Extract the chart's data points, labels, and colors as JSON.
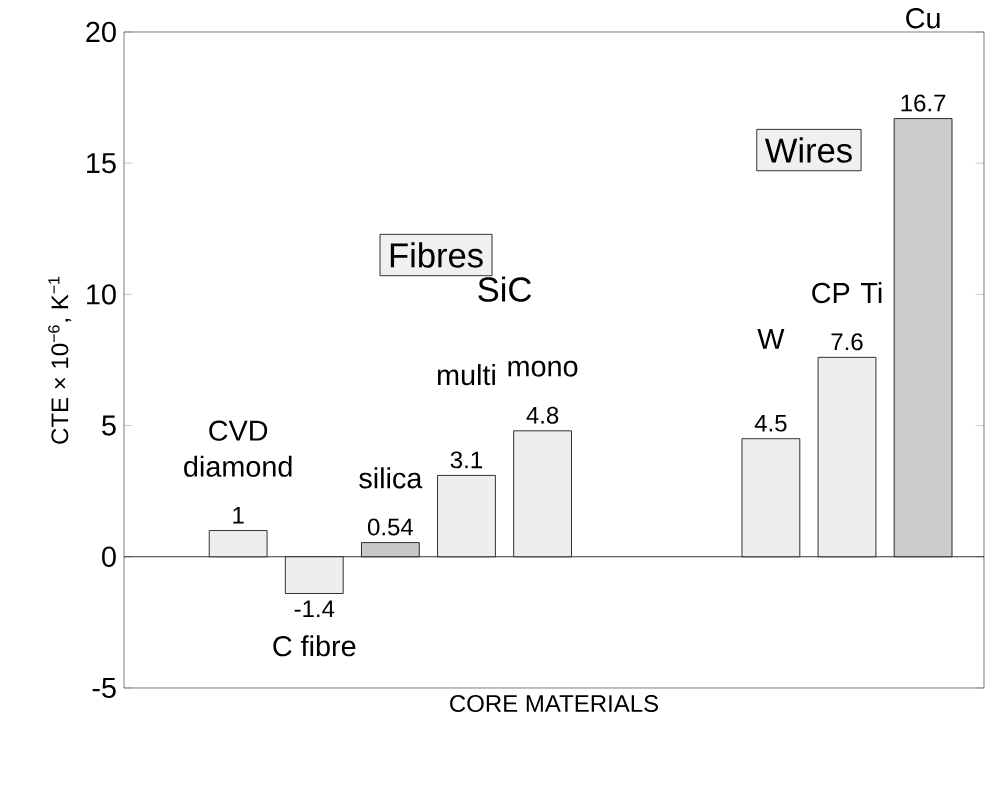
{
  "chart_data": {
    "type": "bar",
    "xlabel": "CORE MATERIALS",
    "ylabel": "CTE × 10$^{−6}$, K$^{−1}$",
    "categories": [
      "CVD diamond",
      "C fibre",
      "silica",
      "multi",
      "mono",
      null,
      null,
      "W",
      "CP Ti",
      "Cu"
    ],
    "values": [
      1,
      -1.4,
      0.54,
      3.1,
      4.8,
      null,
      null,
      4.5,
      7.6,
      16.7
    ],
    "value_labels": [
      "1",
      "-1.4",
      "0.54",
      "3.1",
      "4.8",
      null,
      null,
      "4.5",
      "7.6",
      "16.7"
    ],
    "colors": [
      "#eeeeee",
      "#eeeeee",
      "#c8c8c8",
      "#eeeeee",
      "#eeeeee",
      "#eeeeee",
      "#eeeeee",
      "#eeeeee",
      "#eeeeee",
      "#cccccc"
    ],
    "ylim": [
      -5,
      20
    ],
    "yticks": [
      -5,
      0,
      5,
      10,
      15,
      20
    ],
    "ref_lines": [
      {
        "axis": "y",
        "value": 0
      }
    ],
    "annotations": [
      "SiC",
      "Fibres",
      "Wires"
    ]
  }
}
